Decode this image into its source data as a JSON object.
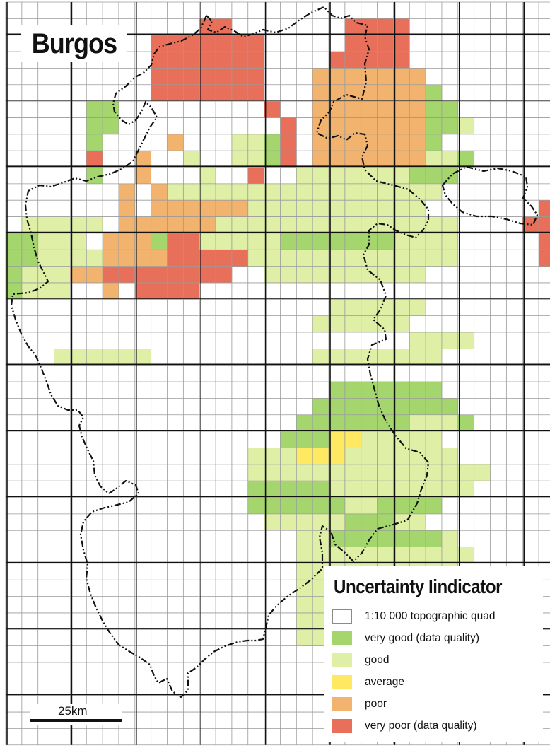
{
  "title": "Burgos",
  "colors": {
    "very_good": "#a5d66e",
    "good": "#dff0a6",
    "average": "#ffe862",
    "poor": "#f2b36e",
    "very_poor": "#e8705a",
    "quad_border": "#9a9a9a",
    "sheet_border": "#111111",
    "outline": "#111111"
  },
  "legend": {
    "title": "Uncertainty Iindicator",
    "items": [
      {
        "label": "1:10 000 topographic quad",
        "color": "#ffffff",
        "key": "quad"
      },
      {
        "label": "very good (data quality)",
        "color": "#a5d66e",
        "key": "very_good"
      },
      {
        "label": "good",
        "color": "#dff0a6",
        "key": "good"
      },
      {
        "label": "average",
        "color": "#ffe862",
        "key": "average"
      },
      {
        "label": "poor",
        "color": "#f2b36e",
        "key": "poor"
      },
      {
        "label": "very poor (data quality)",
        "color": "#e8705a",
        "key": "very_poor"
      }
    ]
  },
  "scale_bar": {
    "label": "25km"
  },
  "quality_grid": {
    "legend_codes": {
      "1": "very_good",
      "2": "good",
      "3": "average",
      "4": "poor",
      "5": "very_poor"
    },
    "rows": [
      "..........................................",
      "............55.......5555.................",
      ".........5555555.....5555.................",
      ".........5555555....55555.................",
      ".........5555555...4444444................",
      ".........5555555...44444441...............",
      ".....11.........5..444444411..............",
      ".....11..........5.4444444112.............",
      ".....1....4...2215.44444441...............",
      ".....5..4..2..2215.4444444221...............",
      ".....1..4...2..5..2222222111..............",
      ".......4.422222222222222222.......555555..",
      ".......4.44444422222222222.......5555555..",
      ".22222.444444222222222222222....555555555.",
      "11222.4441552222211111112222.....555555555",
      "1122224444555552222222222222.....55555555.",
      "12224455555555..2222222222....",
      "1222..4.5555....................",
      "....................222222......",
      "...................222222.......",
      ".........................2222....",
      "...222222..........22222222......",
      ".........................",
      "....................1111111......",
      "...................111111111.....",
      "..................11111112221.....",
      ".................1113322222......",
      "...............2223332222222......",
      "...............222222222222222....",
      "...............11111222222222.....",
      "...............111111221111.......",
      "................2222211122........",
      "..................2211111112......",
      "..................22222222222.....",
      "..................2222222222......",
      "..................222222222.......",
      "..................2222222.........",
      "..................22222...........",
      "..................222.............",
      ".........................",
      "........................."
    ]
  },
  "layers": [
    "1:10 000 topographic quad grid",
    "1:50 000 sheet grid",
    "province outline"
  ]
}
